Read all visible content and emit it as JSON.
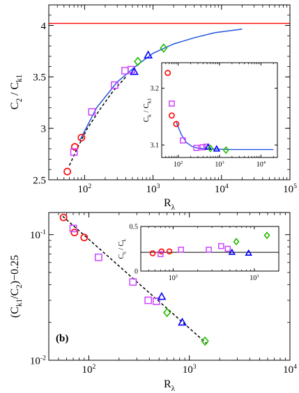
{
  "chart_data": [
    {
      "type": "scatter",
      "title": "",
      "xlabel": "R_λ",
      "ylabel": "C_2 / C_k1",
      "xscale": "log",
      "xlim": [
        30,
        100000
      ],
      "ylim": [
        2.5,
        4.2
      ],
      "x_ticks": [
        {
          "v": 100,
          "label": "10",
          "sup": "2"
        },
        {
          "v": 1000,
          "label": "10",
          "sup": "3"
        },
        {
          "v": 10000,
          "label": "10",
          "sup": "4"
        },
        {
          "v": 100000,
          "label": "10",
          "sup": "5"
        }
      ],
      "y_ticks": [
        {
          "v": 2.5,
          "label": "2.5"
        },
        {
          "v": 3,
          "label": "3"
        },
        {
          "v": 3.5,
          "label": "3.5"
        },
        {
          "v": 4,
          "label": "4"
        }
      ],
      "reference_line": {
        "y": 4.02,
        "color": "#ff0000"
      },
      "series": [
        {
          "marker": "circle",
          "color": "#ff0000",
          "points": [
            [
              56,
              2.58
            ],
            [
              72,
              2.82
            ],
            [
              90,
              2.91
            ]
          ]
        },
        {
          "marker": "square",
          "color": "#cc44ff",
          "points": [
            [
              70,
              2.77
            ],
            [
              128,
              3.16
            ],
            [
              275,
              3.42
            ],
            [
              390,
              3.56
            ],
            [
              480,
              3.57
            ]
          ]
        },
        {
          "marker": "triangle",
          "color": "#0000ff",
          "points": [
            [
              530,
              3.55
            ],
            [
              850,
              3.71
            ]
          ]
        },
        {
          "marker": "diamond",
          "color": "#22bb00",
          "points": [
            [
              600,
              3.65
            ],
            [
              1430,
              3.78
            ]
          ]
        }
      ],
      "fit_solid": {
        "color": "#2255dd",
        "points": [
          [
            85,
            2.88
          ],
          [
            150,
            3.2
          ],
          [
            300,
            3.45
          ],
          [
            600,
            3.62
          ],
          [
            1000,
            3.73
          ],
          [
            2000,
            3.82
          ],
          [
            4000,
            3.88
          ],
          [
            8000,
            3.93
          ],
          [
            20000,
            3.965
          ]
        ]
      },
      "fit_dashed": {
        "color": "#000000",
        "points": [
          [
            60,
            2.64
          ],
          [
            80,
            2.82
          ],
          [
            110,
            3.0
          ],
          [
            170,
            3.19
          ],
          [
            260,
            3.36
          ],
          [
            400,
            3.5
          ]
        ]
      },
      "inset": {
        "xlabel": "",
        "ylabel": "C_k / C_k1",
        "xscale": "log",
        "xlim": [
          40,
          25000
        ],
        "ylim": [
          3.078,
          3.245
        ],
        "x_ticks": [
          {
            "v": 100,
            "label": "10",
            "sup": "2"
          },
          {
            "v": 1000,
            "label": "10",
            "sup": "3"
          },
          {
            "v": 10000,
            "label": "10",
            "sup": "4"
          }
        ],
        "y_ticks": [
          {
            "v": 3.1,
            "label": "3.1"
          },
          {
            "v": 3.2,
            "label": "3.2"
          }
        ],
        "series": [
          {
            "marker": "circle",
            "color": "#ff0000",
            "points": [
              [
                56,
                3.227
              ],
              [
                70,
                3.152
              ],
              [
                90,
                3.137
              ]
            ]
          },
          {
            "marker": "square",
            "color": "#cc44ff",
            "points": [
              [
                70,
                3.173
              ],
              [
                130,
                3.108
              ],
              [
                275,
                3.095
              ],
              [
                390,
                3.096
              ],
              [
                480,
                3.097
              ]
            ]
          },
          {
            "marker": "triangle",
            "color": "#0000ff",
            "points": [
              [
                530,
                3.096
              ],
              [
                850,
                3.093
              ]
            ]
          },
          {
            "marker": "diamond",
            "color": "#22bb00",
            "points": [
              [
                600,
                3.094
              ],
              [
                1430,
                3.091
              ]
            ]
          }
        ],
        "fit": {
          "color": "#2255dd",
          "points": [
            [
              90,
              3.14
            ],
            [
              120,
              3.118
            ],
            [
              160,
              3.104
            ],
            [
              220,
              3.097
            ],
            [
              320,
              3.094
            ],
            [
              600,
              3.093
            ],
            [
              2000,
              3.092
            ],
            [
              20000,
              3.092
            ]
          ]
        }
      }
    },
    {
      "type": "scatter",
      "panel_label": "(b)",
      "xlabel": "R_λ",
      "ylabel": "(C_k1/C_2)−0.25",
      "xscale": "log",
      "yscale": "log",
      "xlim": [
        40,
        10000
      ],
      "ylim": [
        0.01,
        0.15
      ],
      "x_ticks": [
        {
          "v": 100,
          "label": "10",
          "sup": "2"
        },
        {
          "v": 1000,
          "label": "10",
          "sup": "3"
        },
        {
          "v": 10000,
          "label": "10",
          "sup": "4"
        }
      ],
      "y_ticks": [
        {
          "v": 0.1,
          "label": "10",
          "sup": "-1"
        },
        {
          "v": 0.01,
          "label": "10",
          "sup": "-2"
        }
      ],
      "series": [
        {
          "marker": "circle",
          "color": "#ff0000",
          "points": [
            [
              56,
              0.137
            ],
            [
              72,
              0.104
            ],
            [
              90,
              0.095
            ]
          ]
        },
        {
          "marker": "square",
          "color": "#cc44ff",
          "points": [
            [
              70,
              0.112
            ],
            [
              125,
              0.066
            ],
            [
              275,
              0.042
            ],
            [
              390,
              0.03
            ],
            [
              470,
              0.0295
            ]
          ]
        },
        {
          "marker": "triangle",
          "color": "#0000ff",
          "points": [
            [
              530,
              0.032
            ],
            [
              850,
              0.02
            ]
          ]
        },
        {
          "marker": "diamond",
          "color": "#22bb00",
          "points": [
            [
              600,
              0.024
            ],
            [
              1430,
              0.0142
            ]
          ]
        }
      ],
      "fit_dashed": {
        "color": "#000000",
        "points": [
          [
            55,
            0.14
          ],
          [
            1500,
            0.0135
          ]
        ]
      },
      "inset": {
        "xlabel": "",
        "ylabel": "C_η / C_L",
        "xscale": "log",
        "xlim": [
          40,
          2000
        ],
        "ylim": [
          0,
          0.5
        ],
        "x_ticks": [
          {
            "v": 100,
            "label": "10",
            "sup": "2"
          },
          {
            "v": 1000,
            "label": "10",
            "sup": "3"
          }
        ],
        "y_ticks": [
          {
            "v": 0,
            "label": "0"
          },
          {
            "v": 0.5,
            "label": "0.5"
          }
        ],
        "reference_line": {
          "y": 0.21,
          "color": "#000000"
        },
        "series": [
          {
            "marker": "circle",
            "color": "#ff0000",
            "points": [
              [
                56,
                0.2
              ],
              [
                72,
                0.22
              ],
              [
                90,
                0.22
              ]
            ]
          },
          {
            "marker": "square",
            "color": "#cc44ff",
            "points": [
              [
                70,
                0.19
              ],
              [
                125,
                0.24
              ],
              [
                275,
                0.24
              ],
              [
                390,
                0.28
              ],
              [
                470,
                0.25
              ]
            ]
          },
          {
            "marker": "triangle",
            "color": "#0000ff",
            "points": [
              [
                530,
                0.21
              ],
              [
                850,
                0.2
              ]
            ]
          },
          {
            "marker": "diamond",
            "color": "#22bb00",
            "points": [
              [
                600,
                0.33
              ],
              [
                1430,
                0.4
              ]
            ]
          }
        ]
      }
    }
  ]
}
